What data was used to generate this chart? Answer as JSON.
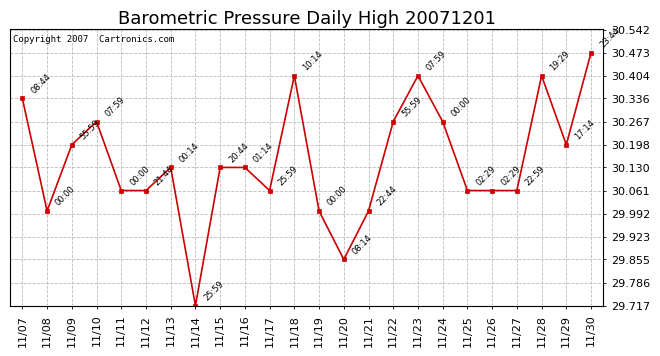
{
  "title": "Barometric Pressure Daily High 20071201",
  "copyright": "Copyright 2007  Cartronics.com",
  "x_labels": [
    "11/07",
    "11/08",
    "11/09",
    "11/10",
    "11/11",
    "11/12",
    "11/13",
    "11/14",
    "11/15",
    "11/16",
    "11/17",
    "11/18",
    "11/19",
    "11/20",
    "11/21",
    "11/22",
    "11/23",
    "11/24",
    "11/25",
    "11/26",
    "11/27",
    "11/28",
    "11/29",
    "11/30"
  ],
  "y_values": [
    30.336,
    30.0,
    30.198,
    30.267,
    30.061,
    30.061,
    30.13,
    29.717,
    30.13,
    30.13,
    30.061,
    30.404,
    30.0,
    29.855,
    30.0,
    30.267,
    30.404,
    30.267,
    30.061,
    30.061,
    30.061,
    30.404,
    30.198,
    30.473
  ],
  "time_labels": [
    "08:44",
    "00:00",
    "55:59",
    "07:59",
    "00:00",
    "21:44",
    "00:14",
    "25:59",
    "20:44",
    "01:14",
    "25:59",
    "10:14",
    "00:00",
    "08:14",
    "22:44",
    "55:59",
    "07:59",
    "00:00",
    "02:29",
    "02:29",
    "22:59",
    "19:29",
    "17:14",
    "23:44"
  ],
  "ylim_min": 29.717,
  "ylim_max": 30.542,
  "y_ticks": [
    29.717,
    29.786,
    29.855,
    29.923,
    29.992,
    30.061,
    30.13,
    30.198,
    30.267,
    30.336,
    30.404,
    30.473,
    30.542
  ],
  "line_color": "#cc0000",
  "marker_color": "#cc0000",
  "bg_color": "#ffffff",
  "grid_color": "#bbbbbb",
  "title_fontsize": 13,
  "tick_fontsize": 8
}
